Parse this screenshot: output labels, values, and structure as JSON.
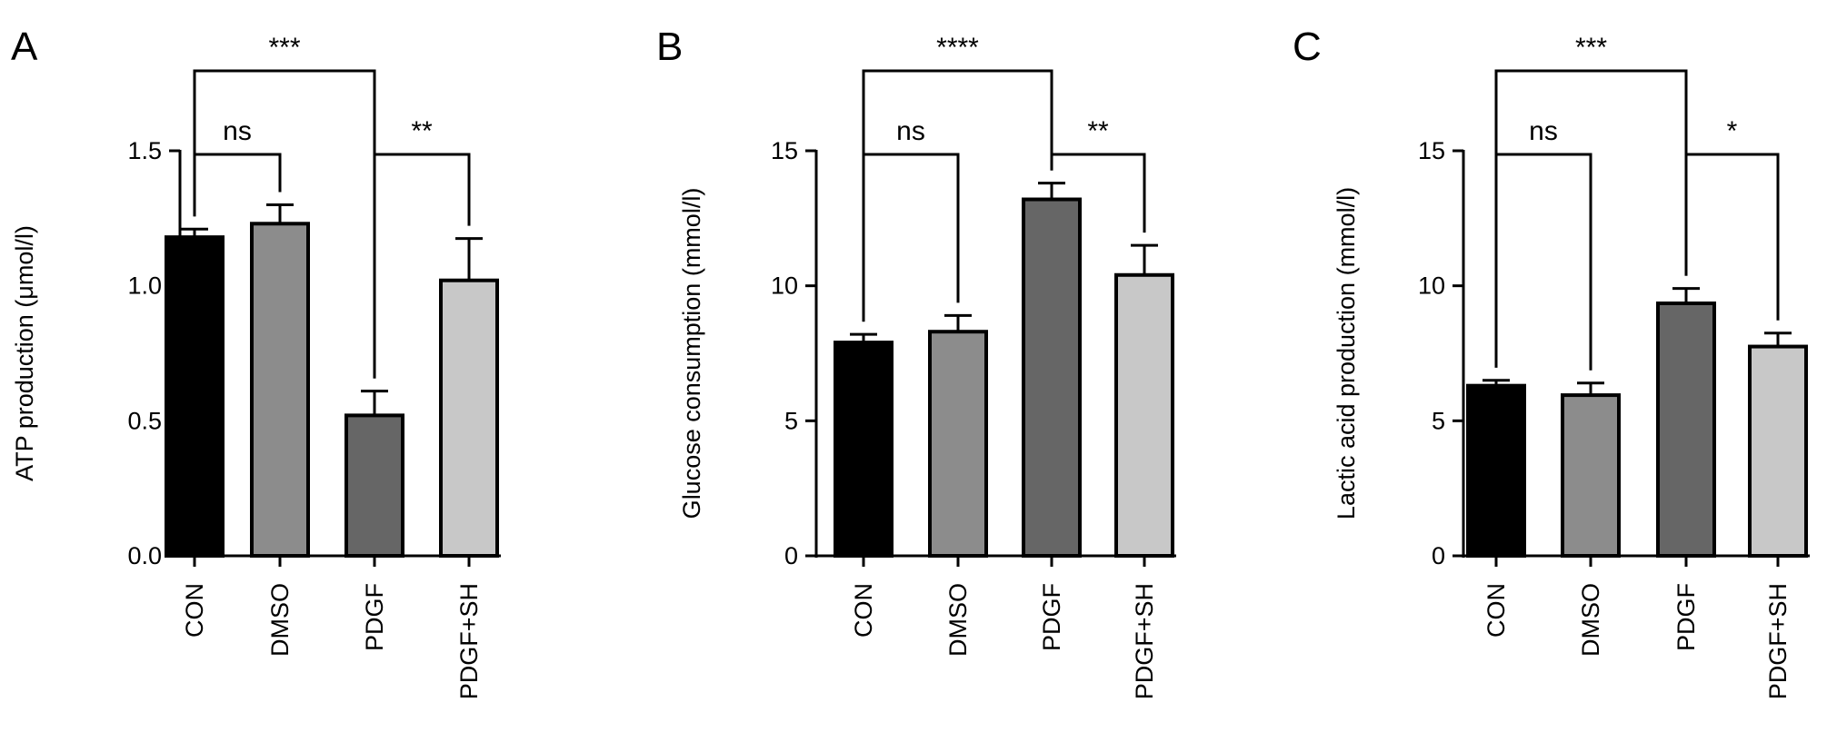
{
  "chart_data": [
    {
      "panel": "A",
      "type": "bar",
      "categories": [
        "CON",
        "DMSO",
        "PDGF",
        "PDGF+SH"
      ],
      "values": [
        1.18,
        1.23,
        0.52,
        1.02
      ],
      "errors": [
        0.03,
        0.07,
        0.09,
        0.155
      ],
      "colors": [
        "#000000",
        "#8c8c8c",
        "#666666",
        "#c8c8c8"
      ],
      "ylabel": "ATP production (μmol/l)",
      "ylim": [
        0,
        1.5
      ],
      "yticks": [
        0.0,
        0.5,
        1.0,
        1.5
      ],
      "ytick_labels": [
        "0.0",
        "0.5",
        "1.0",
        "1.5"
      ],
      "comparisons": [
        {
          "from": 0,
          "to": 1,
          "label": "ns",
          "level": 1
        },
        {
          "from": 2,
          "to": 3,
          "label": "**",
          "level": 1
        },
        {
          "from": 0,
          "to": 2,
          "label": "***",
          "level": 2
        }
      ]
    },
    {
      "panel": "B",
      "type": "bar",
      "categories": [
        "CON",
        "DMSO",
        "PDGF",
        "PDGF+SH"
      ],
      "values": [
        7.9,
        8.3,
        13.2,
        10.4
      ],
      "errors": [
        0.3,
        0.6,
        0.6,
        1.1
      ],
      "colors": [
        "#000000",
        "#8c8c8c",
        "#666666",
        "#c8c8c8"
      ],
      "ylabel": "Glucose consumption (mmol/l)",
      "ylim": [
        0,
        15
      ],
      "yticks": [
        0,
        5,
        10,
        15
      ],
      "ytick_labels": [
        "0",
        "5",
        "10",
        "15"
      ],
      "comparisons": [
        {
          "from": 0,
          "to": 1,
          "label": "ns",
          "level": 1
        },
        {
          "from": 2,
          "to": 3,
          "label": "**",
          "level": 1
        },
        {
          "from": 0,
          "to": 2,
          "label": "****",
          "level": 2
        }
      ]
    },
    {
      "panel": "C",
      "type": "bar",
      "categories": [
        "CON",
        "DMSO",
        "PDGF",
        "PDGF+SH"
      ],
      "values": [
        6.3,
        5.95,
        9.35,
        7.75
      ],
      "errors": [
        0.2,
        0.45,
        0.55,
        0.5
      ],
      "colors": [
        "#000000",
        "#8c8c8c",
        "#666666",
        "#c8c8c8"
      ],
      "ylabel": "Lactic acid production (mmol/l)",
      "ylim": [
        0,
        15
      ],
      "yticks": [
        0,
        5,
        10,
        15
      ],
      "ytick_labels": [
        "0",
        "5",
        "10",
        "15"
      ],
      "comparisons": [
        {
          "from": 0,
          "to": 1,
          "label": "ns",
          "level": 1
        },
        {
          "from": 2,
          "to": 3,
          "label": "*",
          "level": 1
        },
        {
          "from": 0,
          "to": 2,
          "label": "***",
          "level": 2
        }
      ]
    }
  ]
}
